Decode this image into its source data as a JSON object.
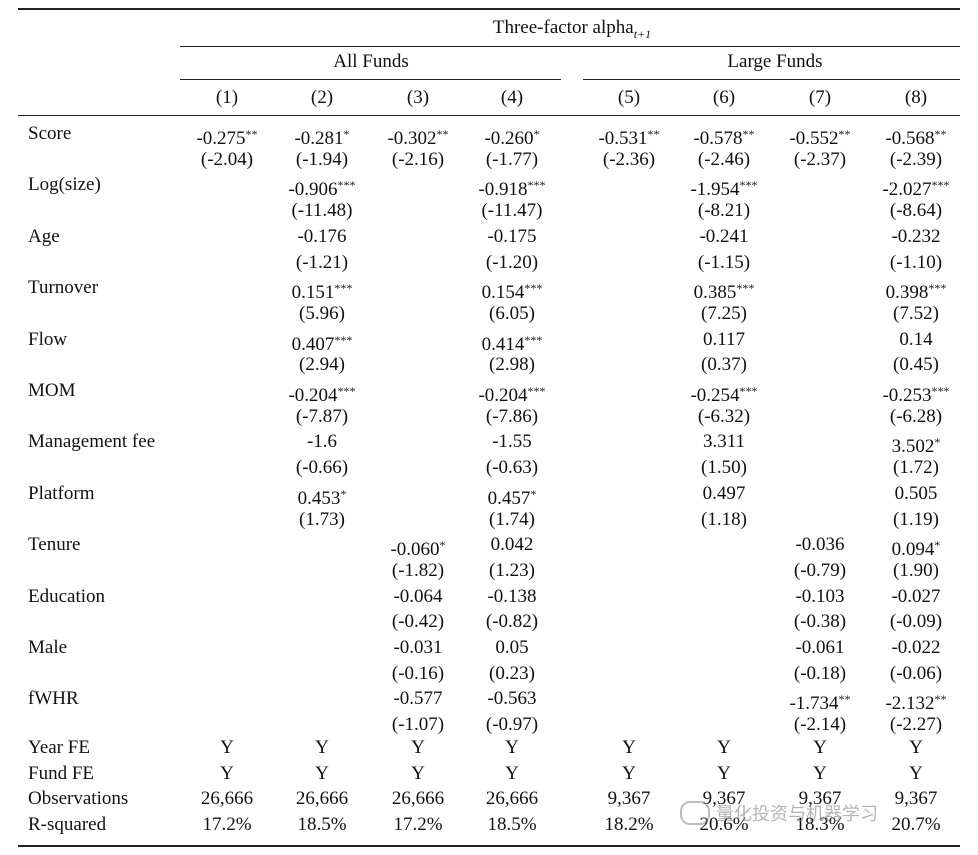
{
  "header": {
    "title": "Three-factor alpha",
    "title_sub": "t+1",
    "group_all": "All Funds",
    "group_large": "Large Funds",
    "col_numbers": [
      "(1)",
      "(2)",
      "(3)",
      "(4)",
      "(5)",
      "(6)",
      "(7)",
      "(8)"
    ]
  },
  "rows": [
    {
      "label": "Score",
      "coef": [
        [
          "-0.275",
          "**"
        ],
        [
          "-0.281",
          "*"
        ],
        [
          "-0.302",
          "**"
        ],
        [
          "-0.260",
          "*"
        ],
        [
          "-0.531",
          "**"
        ],
        [
          "-0.578",
          "**"
        ],
        [
          "-0.552",
          "**"
        ],
        [
          "-0.568",
          "**"
        ]
      ],
      "tstat": [
        "(-2.04)",
        "(-1.94)",
        "(-2.16)",
        "(-1.77)",
        "(-2.36)",
        "(-2.46)",
        "(-2.37)",
        "(-2.39)"
      ]
    },
    {
      "label": "Log(size)",
      "coef": [
        null,
        [
          "-0.906",
          "***"
        ],
        null,
        [
          "-0.918",
          "***"
        ],
        null,
        [
          "-1.954",
          "***"
        ],
        null,
        [
          "-2.027",
          "***"
        ]
      ],
      "tstat": [
        null,
        "(-11.48)",
        null,
        "(-11.47)",
        null,
        "(-8.21)",
        null,
        "(-8.64)"
      ]
    },
    {
      "label": "Age",
      "coef": [
        null,
        [
          "-0.176",
          ""
        ],
        null,
        [
          "-0.175",
          ""
        ],
        null,
        [
          "-0.241",
          ""
        ],
        null,
        [
          "-0.232",
          ""
        ]
      ],
      "tstat": [
        null,
        "(-1.21)",
        null,
        "(-1.20)",
        null,
        "(-1.15)",
        null,
        "(-1.10)"
      ]
    },
    {
      "label": "Turnover",
      "coef": [
        null,
        [
          "0.151",
          "***"
        ],
        null,
        [
          "0.154",
          "***"
        ],
        null,
        [
          "0.385",
          "***"
        ],
        null,
        [
          "0.398",
          "***"
        ]
      ],
      "tstat": [
        null,
        "(5.96)",
        null,
        "(6.05)",
        null,
        "(7.25)",
        null,
        "(7.52)"
      ]
    },
    {
      "label": "Flow",
      "coef": [
        null,
        [
          "0.407",
          "***"
        ],
        null,
        [
          "0.414",
          "***"
        ],
        null,
        [
          "0.117",
          ""
        ],
        null,
        [
          "0.14",
          ""
        ]
      ],
      "tstat": [
        null,
        "(2.94)",
        null,
        "(2.98)",
        null,
        "(0.37)",
        null,
        "(0.45)"
      ]
    },
    {
      "label": "MOM",
      "coef": [
        null,
        [
          "-0.204",
          "***"
        ],
        null,
        [
          "-0.204",
          "***"
        ],
        null,
        [
          "-0.254",
          "***"
        ],
        null,
        [
          "-0.253",
          "***"
        ]
      ],
      "tstat": [
        null,
        "(-7.87)",
        null,
        "(-7.86)",
        null,
        "(-6.32)",
        null,
        "(-6.28)"
      ]
    },
    {
      "label": "Management fee",
      "coef": [
        null,
        [
          "-1.6",
          ""
        ],
        null,
        [
          "-1.55",
          ""
        ],
        null,
        [
          "3.311",
          ""
        ],
        null,
        [
          "3.502",
          "*"
        ]
      ],
      "tstat": [
        null,
        "(-0.66)",
        null,
        "(-0.63)",
        null,
        "(1.50)",
        null,
        "(1.72)"
      ]
    },
    {
      "label": "Platform",
      "coef": [
        null,
        [
          "0.453",
          "*"
        ],
        null,
        [
          "0.457",
          "*"
        ],
        null,
        [
          "0.497",
          ""
        ],
        null,
        [
          "0.505",
          ""
        ]
      ],
      "tstat": [
        null,
        "(1.73)",
        null,
        "(1.74)",
        null,
        "(1.18)",
        null,
        "(1.19)"
      ]
    },
    {
      "label": "Tenure",
      "coef": [
        null,
        null,
        [
          "-0.060",
          "*"
        ],
        [
          "0.042",
          ""
        ],
        null,
        null,
        [
          "-0.036",
          ""
        ],
        [
          "0.094",
          "*"
        ]
      ],
      "tstat": [
        null,
        null,
        "(-1.82)",
        "(1.23)",
        null,
        null,
        "(-0.79)",
        "(1.90)"
      ]
    },
    {
      "label": "Education",
      "coef": [
        null,
        null,
        [
          "-0.064",
          ""
        ],
        [
          "-0.138",
          ""
        ],
        null,
        null,
        [
          "-0.103",
          ""
        ],
        [
          "-0.027",
          ""
        ]
      ],
      "tstat": [
        null,
        null,
        "(-0.42)",
        "(-0.82)",
        null,
        null,
        "(-0.38)",
        "(-0.09)"
      ]
    },
    {
      "label": "Male",
      "coef": [
        null,
        null,
        [
          "-0.031",
          ""
        ],
        [
          "0.05",
          ""
        ],
        null,
        null,
        [
          "-0.061",
          ""
        ],
        [
          "-0.022",
          ""
        ]
      ],
      "tstat": [
        null,
        null,
        "(-0.16)",
        "(0.23)",
        null,
        null,
        "(-0.18)",
        "(-0.06)"
      ]
    },
    {
      "label": "fWHR",
      "coef": [
        null,
        null,
        [
          "-0.577",
          ""
        ],
        [
          "-0.563",
          ""
        ],
        null,
        null,
        [
          "-1.734",
          "**"
        ],
        [
          "-2.132",
          "**"
        ]
      ],
      "tstat": [
        null,
        null,
        "(-1.07)",
        "(-0.97)",
        null,
        null,
        "(-2.14)",
        "(-2.27)"
      ]
    }
  ],
  "footer": [
    {
      "label": "Year FE",
      "values": [
        "Y",
        "Y",
        "Y",
        "Y",
        "Y",
        "Y",
        "Y",
        "Y"
      ]
    },
    {
      "label": "Fund FE",
      "values": [
        "Y",
        "Y",
        "Y",
        "Y",
        "Y",
        "Y",
        "Y",
        "Y"
      ]
    },
    {
      "label": "Observations",
      "values": [
        "26,666",
        "26,666",
        "26,666",
        "26,666",
        "9,367",
        "9,367",
        "9,367",
        "9,367"
      ]
    },
    {
      "label": "R-squared",
      "values": [
        "17.2%",
        "18.5%",
        "17.2%",
        "18.5%",
        "18.2%",
        "20.6%",
        "18.3%",
        "20.7%"
      ]
    }
  ],
  "watermark": {
    "text": "量化投资与机器学习",
    "icon": "wechat-icon"
  }
}
